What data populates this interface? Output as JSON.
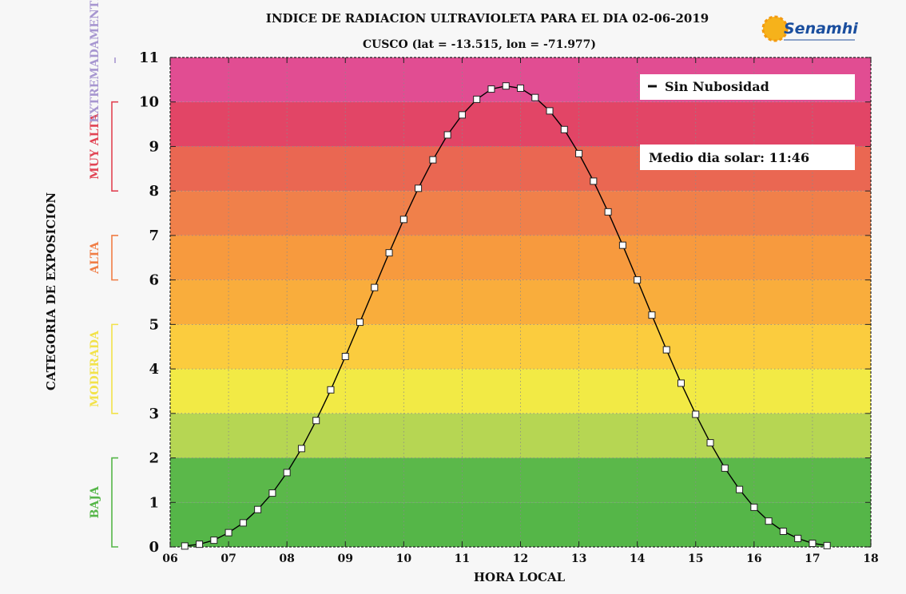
{
  "chart_data": {
    "type": "line",
    "title": "INDICE DE RADIACION ULTRAVIOLETA PARA EL DIA 02-06-2019",
    "subtitle": "CUSCO (lat = -13.515, lon = -71.977)",
    "xlabel": "HORA LOCAL",
    "ylabel": "CATEGORIA DE EXPOSICION",
    "xlim": [
      6,
      18
    ],
    "ylim": [
      0,
      11
    ],
    "x_ticks": [
      6,
      7,
      8,
      9,
      10,
      11,
      12,
      13,
      14,
      15,
      16,
      17,
      18
    ],
    "x_tick_labels": [
      "06",
      "07",
      "08",
      "09",
      "10",
      "11",
      "12",
      "13",
      "14",
      "15",
      "16",
      "17",
      "18"
    ],
    "y_ticks": [
      0,
      1,
      2,
      3,
      4,
      5,
      6,
      7,
      8,
      9,
      10,
      11
    ],
    "y_tick_labels": [
      "0",
      "1",
      "2",
      "3",
      "4",
      "5",
      "6",
      "7",
      "8",
      "9",
      "10",
      "11"
    ],
    "grid": true,
    "legend_position": "top-right",
    "series": [
      {
        "name": "Sin Nubosidad",
        "color": "#000000",
        "marker": "square",
        "x": [
          6.25,
          6.5,
          6.75,
          7.0,
          7.25,
          7.5,
          7.75,
          8.0,
          8.25,
          8.5,
          8.75,
          9.0,
          9.25,
          9.5,
          9.75,
          10.0,
          10.25,
          10.5,
          10.75,
          11.0,
          11.25,
          11.5,
          11.75,
          12.0,
          12.25,
          12.5,
          12.75,
          13.0,
          13.25,
          13.5,
          13.75,
          14.0,
          14.25,
          14.5,
          14.75,
          15.0,
          15.25,
          15.5,
          15.75,
          16.0,
          16.25,
          16.5,
          16.75,
          17.0,
          17.25
        ],
        "y": [
          0.02,
          0.06,
          0.15,
          0.32,
          0.54,
          0.84,
          1.21,
          1.67,
          2.21,
          2.84,
          3.53,
          4.28,
          5.05,
          5.83,
          6.61,
          7.36,
          8.06,
          8.7,
          9.26,
          9.71,
          10.06,
          10.29,
          10.36,
          10.31,
          10.1,
          9.8,
          9.38,
          8.84,
          8.22,
          7.53,
          6.78,
          6.0,
          5.21,
          4.43,
          3.68,
          2.98,
          2.34,
          1.77,
          1.29,
          0.89,
          0.58,
          0.35,
          0.19,
          0.08,
          0.03
        ]
      }
    ],
    "bands": [
      {
        "from": 0,
        "to": 1,
        "color": "#55b648"
      },
      {
        "from": 1,
        "to": 2,
        "color": "#5bb84a"
      },
      {
        "from": 2,
        "to": 3,
        "color": "#b6d653"
      },
      {
        "from": 3,
        "to": 4,
        "color": "#f2ea45"
      },
      {
        "from": 4,
        "to": 5,
        "color": "#fbcc3e"
      },
      {
        "from": 5,
        "to": 6,
        "color": "#f9ad3c"
      },
      {
        "from": 6,
        "to": 7,
        "color": "#f79a3e"
      },
      {
        "from": 7,
        "to": 8,
        "color": "#f0804a"
      },
      {
        "from": 8,
        "to": 9,
        "color": "#ea6752"
      },
      {
        "from": 9,
        "to": 10,
        "color": "#e24566"
      },
      {
        "from": 10,
        "to": 11,
        "color": "#e14d92"
      },
      {
        "from": 11,
        "to": 12,
        "color": "#b07fbe"
      }
    ],
    "categories": [
      {
        "label": "BAJA",
        "from": 0,
        "to": 2,
        "color": "#55b648"
      },
      {
        "label": "MODERADA",
        "from": 3,
        "to": 5,
        "color": "#f2e24a"
      },
      {
        "label": "ALTA",
        "from": 6,
        "to": 7,
        "color": "#f07d45"
      },
      {
        "label": "MUY ALTA",
        "from": 8,
        "to": 10,
        "color": "#e14454"
      },
      {
        "label": "EXTREMADAMENTE",
        "from": 11,
        "to": 11,
        "color": "#a796d0"
      }
    ],
    "annotations": {
      "legend_label": "Sin Nubosidad",
      "solar_noon": "Medio dia solar: 11:46"
    },
    "logo_text": "Senamhi"
  }
}
